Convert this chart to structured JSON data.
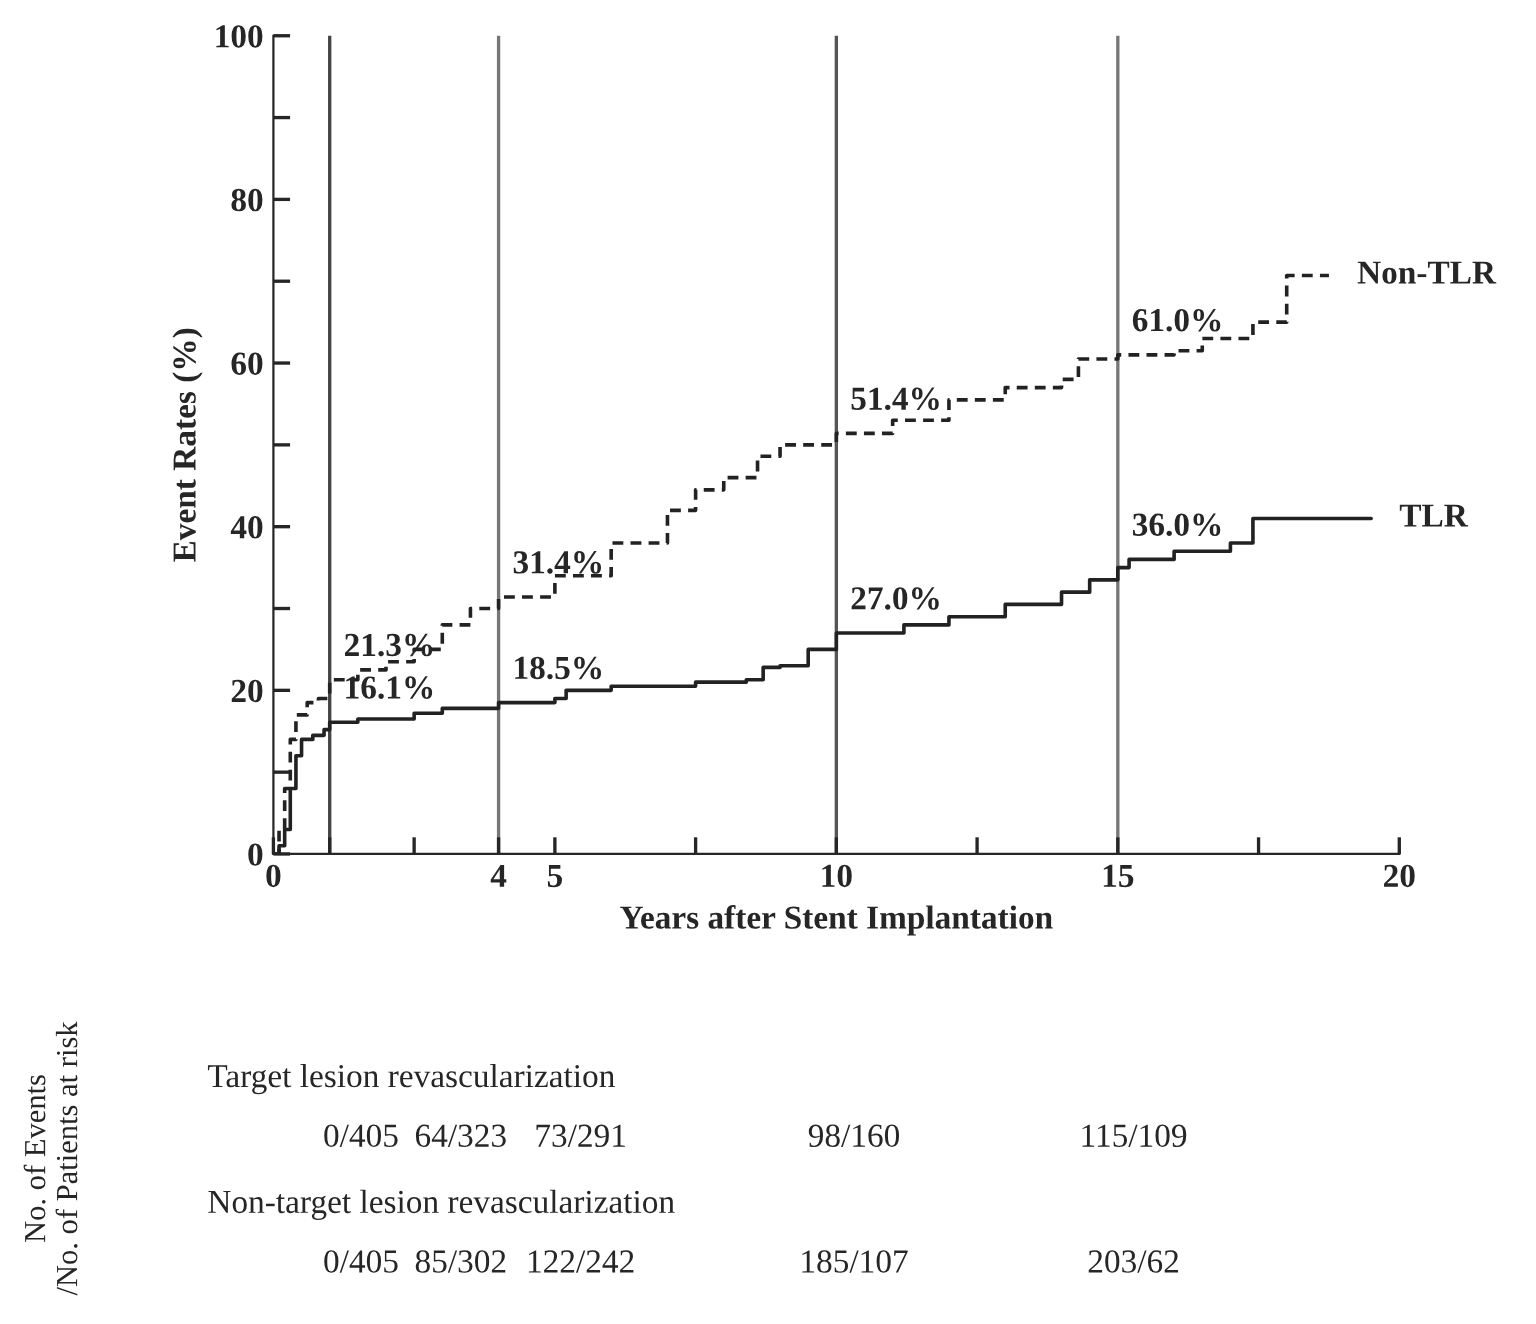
{
  "chart_data": {
    "type": "step",
    "xlabel": "Years after Stent Implantation",
    "ylabel": "Event Rates (%)",
    "xlim": [
      0,
      20
    ],
    "ylim": [
      0,
      100
    ],
    "xticks": [
      0,
      {
        "value": 1,
        "label": null
      },
      {
        "value": 2.5,
        "label": null
      },
      4,
      5,
      {
        "value": 7.5,
        "label": null
      },
      10,
      {
        "value": 12.5,
        "label": null
      },
      15,
      {
        "value": 17.5,
        "label": null
      },
      20
    ],
    "yticks": [
      0,
      {
        "value": 10,
        "label": null
      },
      20,
      {
        "value": 30,
        "label": null
      },
      40,
      {
        "value": 50,
        "label": null
      },
      60,
      {
        "value": 70,
        "label": null
      },
      80,
      {
        "value": 90,
        "label": null
      },
      100
    ],
    "grid": false,
    "legend": false,
    "series": [
      {
        "name": "Non-TLR",
        "color": "#222222",
        "line_style": "dashed",
        "x": [
          0,
          0.1,
          0.2,
          0.3,
          0.4,
          0.6,
          0.8,
          1.0,
          1.5,
          2.0,
          2.5,
          3.0,
          3.5,
          4.0,
          5.0,
          6.0,
          7.0,
          7.5,
          8.0,
          8.6,
          9.0,
          10.0,
          11.0,
          12.0,
          13.0,
          14.0,
          14.3,
          15.0,
          16.0,
          16.5,
          17.4,
          18.0,
          18.75
        ],
        "values": [
          0,
          3,
          8,
          14,
          17,
          18.5,
          19,
          21.3,
          22.5,
          23.5,
          25,
          28,
          30,
          31.4,
          34,
          38,
          42,
          44.5,
          46,
          48.6,
          50,
          51.4,
          53,
          55.5,
          57,
          58,
          60.5,
          61.0,
          61.5,
          63,
          65,
          70.7,
          70.7
        ]
      },
      {
        "name": "TLR",
        "color": "#222222",
        "line_style": "solid",
        "x": [
          0,
          0.1,
          0.2,
          0.3,
          0.4,
          0.5,
          0.7,
          0.9,
          1.0,
          1.5,
          2.5,
          3.0,
          4.0,
          5.0,
          5.2,
          6.0,
          7.5,
          8.4,
          8.7,
          9.0,
          9.5,
          10.0,
          11.0,
          11.2,
          12.0,
          13.0,
          14.0,
          14.5,
          15.0,
          15.2,
          16.0,
          17.0,
          17.4,
          19.5
        ],
        "values": [
          0,
          1,
          3,
          8,
          12,
          14,
          14.5,
          15.2,
          16.1,
          16.5,
          17.2,
          17.8,
          18.5,
          19.0,
          20.0,
          20.5,
          21.0,
          21.3,
          22.8,
          23.0,
          25.0,
          27.0,
          27.0,
          28.0,
          29.0,
          30.5,
          32.0,
          33.5,
          35.0,
          36.0,
          37.0,
          38.0,
          41.0,
          41.0
        ]
      }
    ],
    "ref_lines": [
      {
        "axis": "x",
        "value": 1,
        "color": "#444444"
      },
      {
        "axis": "x",
        "value": 4,
        "color": "#777777"
      },
      {
        "axis": "x",
        "value": 10,
        "color": "#555555"
      },
      {
        "axis": "x",
        "value": 15,
        "color": "#777777"
      }
    ],
    "annotations": [
      {
        "text": "16.1%",
        "x": 1,
        "y": 16.1
      },
      {
        "text": "21.3%",
        "x": 1,
        "y": 21.3
      },
      {
        "text": "18.5%",
        "x": 4,
        "y": 18.5
      },
      {
        "text": "31.4%",
        "x": 4,
        "y": 31.4
      },
      {
        "text": "27.0%",
        "x": 10,
        "y": 27.0
      },
      {
        "text": "51.4%",
        "x": 10,
        "y": 51.4
      },
      {
        "text": "36.0%",
        "x": 15,
        "y": 36.0
      },
      {
        "text": "61.0%",
        "x": 15,
        "y": 61.0
      },
      "No. of Events\n/No. of Patients at risk",
      "Target lesion revascularization",
      "0/405",
      "64/323",
      "73/291",
      "98/160",
      "115/109",
      "Non-target lesion revascularization",
      "0/405",
      "85/302",
      "122/242",
      "185/107",
      "203/62"
    ]
  }
}
